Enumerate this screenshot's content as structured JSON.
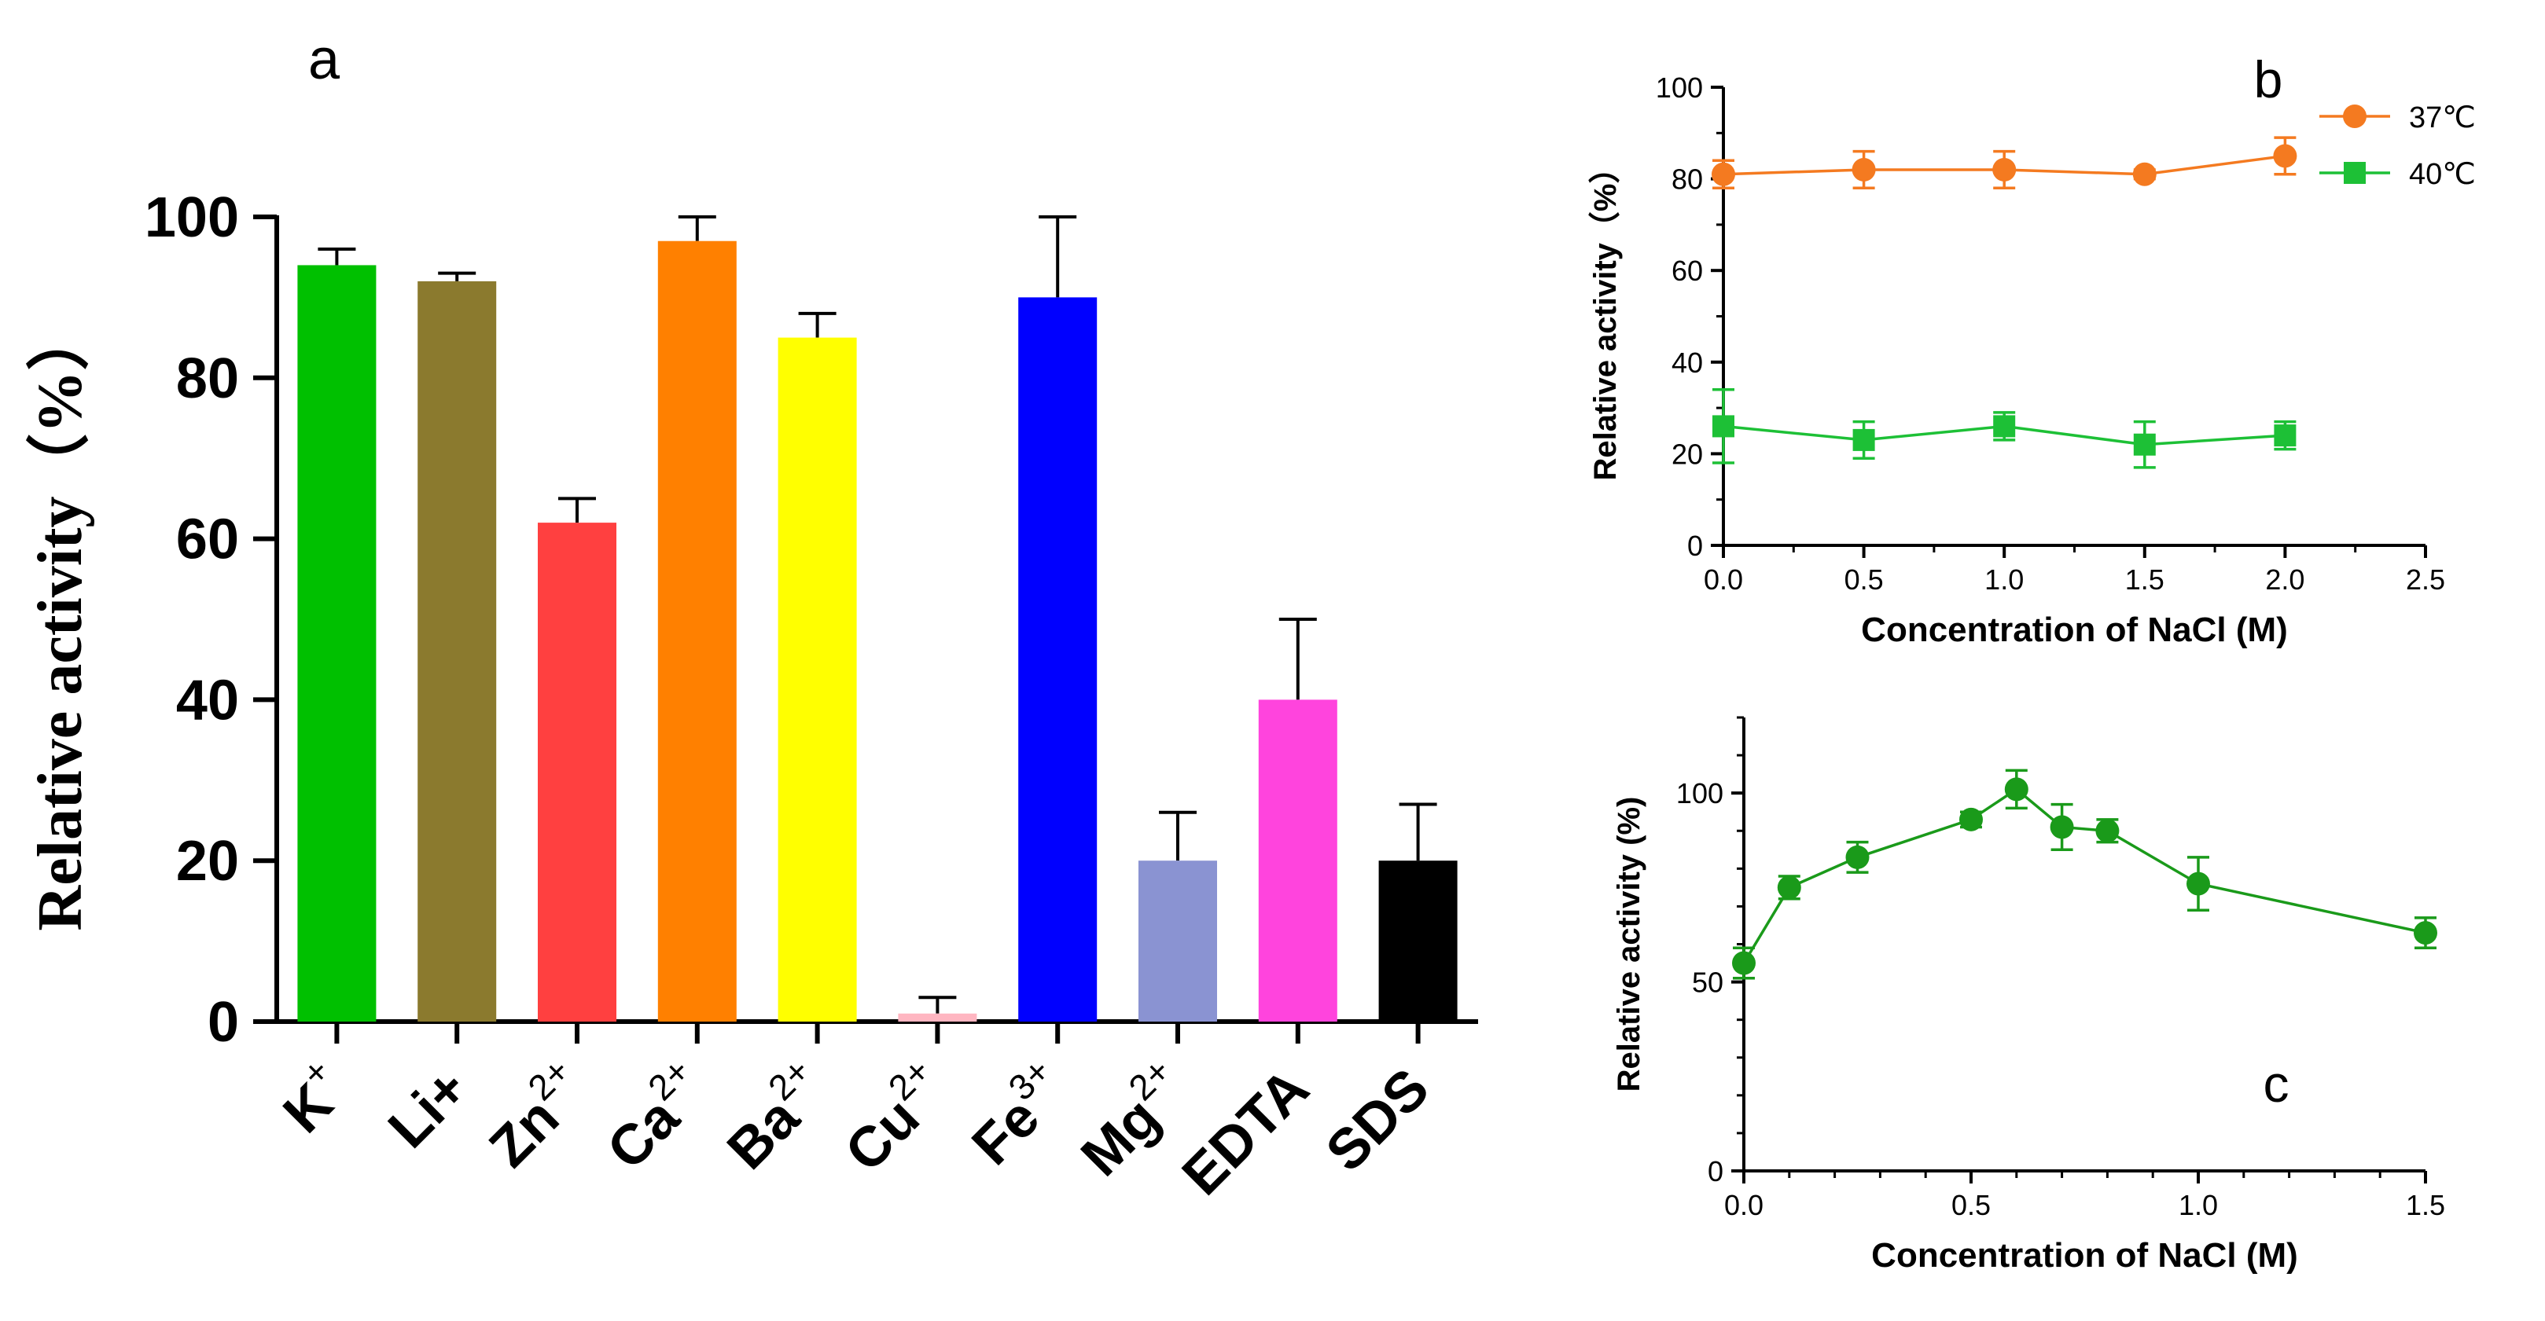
{
  "chart_data": [
    {
      "panel": "a",
      "type": "bar",
      "panel_label": "a",
      "ylabel": "Relative activity（%）",
      "xlabel": "",
      "ylim": [
        0,
        100
      ],
      "yticks": [
        0,
        20,
        40,
        60,
        80,
        100
      ],
      "ytick_labels": [
        "0",
        "20",
        "40",
        "60",
        "80",
        "100"
      ],
      "categories": [
        {
          "base": "K",
          "sup": "+"
        },
        {
          "base": "Li+",
          "sup": ""
        },
        {
          "base": "Zn",
          "sup": "2+"
        },
        {
          "base": "Ca",
          "sup": "2+"
        },
        {
          "base": "Ba",
          "sup": "2+"
        },
        {
          "base": "Cu",
          "sup": "2+"
        },
        {
          "base": "Fe",
          "sup": "3+"
        },
        {
          "base": "Mg",
          "sup": "2+"
        },
        {
          "base": "EDTA",
          "sup": ""
        },
        {
          "base": "SDS",
          "sup": ""
        }
      ],
      "values": [
        94,
        92,
        62,
        97,
        85,
        1,
        90,
        20,
        40,
        20
      ],
      "errors": [
        2,
        1,
        3,
        3,
        3,
        2,
        10,
        6,
        10,
        7
      ],
      "colors": [
        "#00c000",
        "#8b7a2e",
        "#ff4040",
        "#ff8000",
        "#ffff00",
        "#ffb6c1",
        "#0000ff",
        "#8a93d2",
        "#ff44dd",
        "#000000"
      ]
    },
    {
      "panel": "b",
      "type": "line",
      "panel_label": "b",
      "xlabel": "Concentration of NaCl (M)",
      "ylabel": "Relative activity（%）",
      "xlim": [
        0,
        2.5
      ],
      "ylim": [
        0,
        100
      ],
      "xticks": [
        0,
        0.5,
        1,
        1.5,
        2,
        2.5
      ],
      "xtick_labels": [
        "0.0",
        "0.5",
        "1.0",
        "1.5",
        "2.0",
        "2.5"
      ],
      "yticks": [
        0,
        20,
        40,
        60,
        80,
        100
      ],
      "ytick_labels": [
        "0",
        "20",
        "40",
        "60",
        "80",
        "100"
      ],
      "legend_position": "top-right outside",
      "series": [
        {
          "name": "37℃",
          "color": "#f47a20",
          "marker": "circle",
          "x": [
            0,
            0.5,
            1,
            1.5,
            2
          ],
          "y": [
            81,
            82,
            82,
            81,
            85
          ],
          "err": [
            3,
            4,
            4,
            1,
            4
          ]
        },
        {
          "name": "40℃",
          "color": "#1dc036",
          "marker": "square",
          "x": [
            0,
            0.5,
            1,
            1.5,
            2
          ],
          "y": [
            26,
            23,
            26,
            22,
            24
          ],
          "err": [
            8,
            4,
            3,
            5,
            3
          ]
        }
      ]
    },
    {
      "panel": "c",
      "type": "line",
      "panel_label": "c",
      "xlabel": "Concentration of NaCl (M)",
      "ylabel": "Relative activity (%)",
      "xlim": [
        0,
        1.5
      ],
      "ylim": [
        0,
        120
      ],
      "xticks": [
        0,
        0.5,
        1,
        1.5
      ],
      "xtick_labels": [
        "0.0",
        "0.5",
        "1.0",
        "1.5"
      ],
      "yticks": [
        0,
        50,
        100
      ],
      "ytick_labels": [
        "0",
        "50",
        "100"
      ],
      "series": [
        {
          "name": "",
          "color": "#1a9a1a",
          "marker": "circle",
          "x": [
            0,
            0.1,
            0.25,
            0.5,
            0.6,
            0.7,
            0.8,
            1.0,
            1.5
          ],
          "y": [
            55,
            75,
            83,
            93,
            101,
            91,
            90,
            76,
            63
          ],
          "err": [
            4,
            3,
            4,
            2,
            5,
            6,
            3,
            7,
            4
          ]
        }
      ]
    }
  ]
}
